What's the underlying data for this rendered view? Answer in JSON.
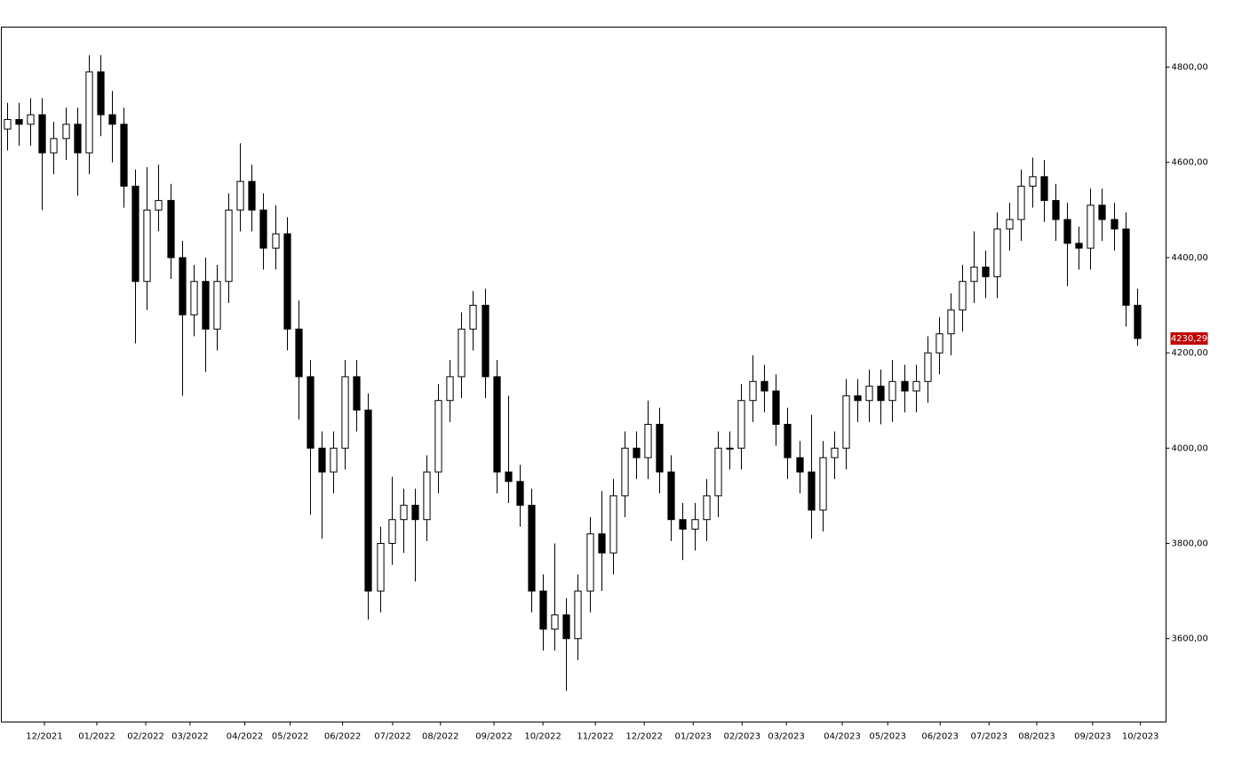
{
  "chart_data": {
    "type": "candlestick",
    "open": [
      4670,
      4690,
      4680,
      4700,
      4620,
      4650,
      4680,
      4620,
      4790,
      4700,
      4680,
      4550,
      4350,
      4500,
      4520,
      4400,
      4280,
      4350,
      4250,
      4350,
      4500,
      4560,
      4500,
      4420,
      4450,
      4250,
      4150,
      4000,
      3950,
      4000,
      4150,
      4080,
      3700,
      3800,
      3850,
      3880,
      3850,
      3950,
      4100,
      4150,
      4250,
      4300,
      4150,
      3950,
      3930,
      3880,
      3700,
      3620,
      3650,
      3600,
      3700,
      3820,
      3780,
      3900,
      4000,
      3980,
      4050,
      3950,
      3850,
      3830,
      3850,
      3900,
      4000,
      4000,
      4100,
      4140,
      4120,
      4050,
      3980,
      3950,
      3870,
      3980,
      4000,
      4110,
      4100,
      4130,
      4100,
      4140,
      4120,
      4140,
      4200,
      4240,
      4290,
      4350,
      4380,
      4360,
      4460,
      4480,
      4550,
      4570,
      4520,
      4480,
      4430,
      4420,
      4510,
      4480,
      4460,
      4300
    ],
    "high": [
      4725,
      4725,
      4735,
      4735,
      4685,
      4715,
      4715,
      4825,
      4825,
      4750,
      4715,
      4585,
      4590,
      4595,
      4555,
      4435,
      4385,
      4400,
      4385,
      4535,
      4640,
      4595,
      4535,
      4510,
      4485,
      4310,
      4185,
      4035,
      4035,
      4185,
      4185,
      4115,
      3835,
      3940,
      3915,
      3915,
      3985,
      4135,
      4185,
      4285,
      4330,
      4335,
      4185,
      4110,
      3965,
      3915,
      3735,
      3800,
      3685,
      3735,
      3855,
      3910,
      3935,
      4035,
      4035,
      4100,
      4085,
      3985,
      3885,
      3885,
      3935,
      4035,
      4035,
      4135,
      4195,
      4175,
      4155,
      4085,
      4015,
      4070,
      4015,
      4035,
      4145,
      4145,
      4165,
      4165,
      4185,
      4175,
      4175,
      4235,
      4275,
      4325,
      4385,
      4455,
      4415,
      4495,
      4515,
      4585,
      4610,
      4605,
      4555,
      4515,
      4465,
      4545,
      4545,
      4515,
      4495,
      4335
    ],
    "low": [
      4625,
      4635,
      4635,
      4500,
      4575,
      4605,
      4530,
      4575,
      4655,
      4600,
      4505,
      4220,
      4290,
      4455,
      4355,
      4110,
      4235,
      4160,
      4205,
      4305,
      4455,
      4455,
      4375,
      4375,
      4205,
      4060,
      3860,
      3810,
      3905,
      3955,
      4035,
      3640,
      3655,
      3755,
      3780,
      3720,
      3805,
      3905,
      4055,
      4105,
      4205,
      4105,
      3905,
      3885,
      3835,
      3655,
      3575,
      3575,
      3490,
      3555,
      3655,
      3700,
      3735,
      3855,
      3935,
      3935,
      3905,
      3805,
      3765,
      3785,
      3805,
      3855,
      3955,
      3955,
      4055,
      4075,
      4005,
      3935,
      3905,
      3810,
      3825,
      3935,
      3955,
      4055,
      4055,
      4050,
      4055,
      4075,
      4075,
      4095,
      4155,
      4195,
      4245,
      4305,
      4315,
      4315,
      4415,
      4435,
      4505,
      4475,
      4435,
      4340,
      4375,
      4375,
      4435,
      4415,
      4255,
      4215
    ],
    "close": [
      4690,
      4680,
      4700,
      4620,
      4650,
      4680,
      4620,
      4790,
      4700,
      4680,
      4550,
      4350,
      4500,
      4520,
      4400,
      4280,
      4350,
      4250,
      4350,
      4500,
      4560,
      4500,
      4420,
      4450,
      4250,
      4150,
      4000,
      3950,
      4000,
      4150,
      4080,
      3700,
      3800,
      3850,
      3880,
      3850,
      3950,
      4100,
      4150,
      4250,
      4300,
      4150,
      3950,
      3930,
      3880,
      3700,
      3620,
      3650,
      3600,
      3700,
      3820,
      3780,
      3900,
      4000,
      3980,
      4050,
      3950,
      3850,
      3830,
      3850,
      3900,
      4000,
      4000,
      4100,
      4140,
      4120,
      4050,
      3980,
      3950,
      3870,
      3980,
      4000,
      4110,
      4100,
      4130,
      4100,
      4140,
      4120,
      4140,
      4200,
      4240,
      4290,
      4350,
      4380,
      4360,
      4460,
      4480,
      4550,
      4570,
      4520,
      4480,
      4430,
      4420,
      4510,
      4480,
      4460,
      4300,
      4230.29
    ],
    "up_color": "#ffffff",
    "down_color": "#000000",
    "xlim": [
      -0.5,
      99.5
    ],
    "xticks": [
      {
        "value": 3.2,
        "label": "12/2021"
      },
      {
        "value": 7.7,
        "label": "01/2022"
      },
      {
        "value": 11.9,
        "label": "02/2022"
      },
      {
        "value": 15.7,
        "label": "03/2022"
      },
      {
        "value": 20.4,
        "label": "04/2022"
      },
      {
        "value": 24.3,
        "label": "05/2022"
      },
      {
        "value": 28.8,
        "label": "06/2022"
      },
      {
        "value": 33.1,
        "label": "07/2022"
      },
      {
        "value": 37.2,
        "label": "08/2022"
      },
      {
        "value": 41.8,
        "label": "09/2022"
      },
      {
        "value": 46.0,
        "label": "10/2022"
      },
      {
        "value": 50.5,
        "label": "11/2022"
      },
      {
        "value": 54.7,
        "label": "12/2022"
      },
      {
        "value": 58.9,
        "label": "01/2023"
      },
      {
        "value": 63.1,
        "label": "02/2023"
      },
      {
        "value": 66.9,
        "label": "03/2023"
      },
      {
        "value": 71.7,
        "label": "04/2023"
      },
      {
        "value": 75.6,
        "label": "05/2023"
      },
      {
        "value": 80.1,
        "label": "06/2023"
      },
      {
        "value": 84.3,
        "label": "07/2023"
      },
      {
        "value": 88.4,
        "label": "08/2023"
      },
      {
        "value": 93.2,
        "label": "09/2023"
      },
      {
        "value": 97.3,
        "label": "10/2023"
      }
    ],
    "ylim": [
      3425,
      4884
    ],
    "yticks": [
      {
        "value": 3600,
        "label": "3600,00"
      },
      {
        "value": 3800,
        "label": "3800,00"
      },
      {
        "value": 4000,
        "label": "4000,00"
      },
      {
        "value": 4200,
        "label": "4200,00"
      },
      {
        "value": 4400,
        "label": "4400,00"
      },
      {
        "value": 4600,
        "label": "4600,00"
      },
      {
        "value": 4800,
        "label": "4800,00"
      }
    ],
    "last_price": {
      "value": 4230.29,
      "label": "4230,29",
      "color": "#c00000"
    }
  }
}
